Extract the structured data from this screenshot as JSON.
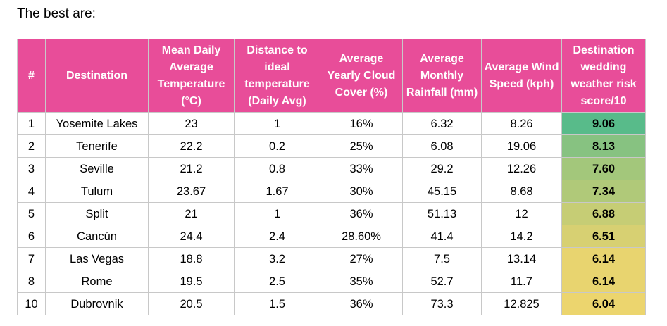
{
  "heading": "The best are:",
  "table": {
    "headers": [
      "#",
      "Destination",
      "Mean Daily Average Temperature (°C)",
      "Distance to ideal temperature (Daily Avg)",
      "Average Yearly Cloud Cover (%)",
      "Average Monthly Rainfall (mm)",
      "Average Wind Speed (kph)",
      "Destination wedding weather risk score/10"
    ],
    "rows": [
      {
        "rank": "1",
        "destination": "Yosemite Lakes",
        "temp": "23",
        "distance": "1",
        "cloud": "16%",
        "rain": "6.32",
        "wind": "8.26",
        "score": "9.06",
        "score_color": "#58bb8a"
      },
      {
        "rank": "2",
        "destination": "Tenerife",
        "temp": "22.2",
        "distance": "0.2",
        "cloud": "25%",
        "rain": "6.08",
        "wind": "19.06",
        "score": "8.13",
        "score_color": "#87c281"
      },
      {
        "rank": "3",
        "destination": "Seville",
        "temp": "21.2",
        "distance": "0.8",
        "cloud": "33%",
        "rain": "29.2",
        "wind": "12.26",
        "score": "7.60",
        "score_color": "#a3c77b"
      },
      {
        "rank": "4",
        "destination": "Tulum",
        "temp": "23.67",
        "distance": "1.67",
        "cloud": "30%",
        "rain": "45.15",
        "wind": "8.68",
        "score": "7.34",
        "score_color": "#b0c979"
      },
      {
        "rank": "5",
        "destination": "Split",
        "temp": "21",
        "distance": "1",
        "cloud": "36%",
        "rain": "51.13",
        "wind": "12",
        "score": "6.88",
        "score_color": "#c6cd75"
      },
      {
        "rank": "6",
        "destination": "Cancún",
        "temp": "24.4",
        "distance": "2.4",
        "cloud": "28.60%",
        "rain": "41.4",
        "wind": "14.2",
        "score": "6.51",
        "score_color": "#d7d072"
      },
      {
        "rank": "7",
        "destination": "Las Vegas",
        "temp": "18.8",
        "distance": "3.2",
        "cloud": "27%",
        "rain": "7.5",
        "wind": "13.14",
        "score": "6.14",
        "score_color": "#e8d46f"
      },
      {
        "rank": "8",
        "destination": "Rome",
        "temp": "19.5",
        "distance": "2.5",
        "cloud": "35%",
        "rain": "52.7",
        "wind": "11.7",
        "score": "6.14",
        "score_color": "#e8d46f"
      },
      {
        "rank": "10",
        "destination": "Dubrovnik",
        "temp": "20.5",
        "distance": "1.5",
        "cloud": "36%",
        "rain": "73.3",
        "wind": "12.825",
        "score": "6.04",
        "score_color": "#ecd56e"
      }
    ]
  },
  "colors": {
    "header_bg": "#e84d99",
    "header_text": "#ffffff",
    "border": "#c8c8c8"
  }
}
